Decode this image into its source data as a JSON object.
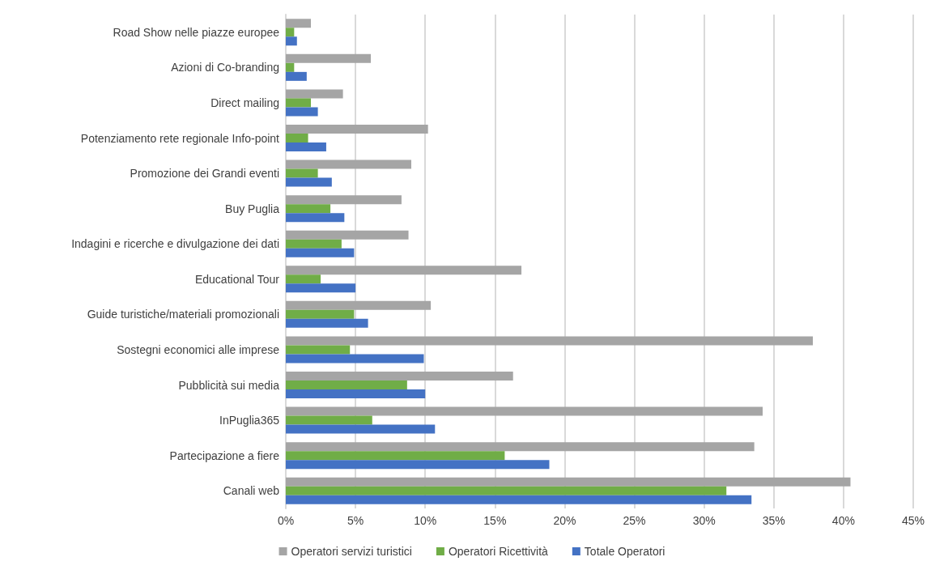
{
  "chart_data": {
    "type": "bar",
    "orientation": "horizontal",
    "categories": [
      "Road Show nelle piazze europee",
      "Azioni di Co-branding",
      "Direct mailing",
      "Potenziamento rete regionale Info-point",
      "Promozione dei Grandi eventi",
      "Buy Puglia",
      "Indagini e ricerche e divulgazione dei dati",
      "Educational Tour",
      "Guide turistiche/materiali promozionali",
      "Sostegni economici alle imprese",
      "Pubblicità sui media",
      "InPuglia365",
      "Partecipazione a fiere",
      "Canali web"
    ],
    "series": [
      {
        "name": "Operatori servizi turistici",
        "color": "#a5a5a5",
        "values": [
          1.8,
          6.1,
          4.1,
          10.2,
          9.0,
          8.3,
          8.8,
          16.9,
          10.4,
          37.8,
          16.3,
          34.2,
          33.6,
          40.5
        ]
      },
      {
        "name": "Operatori Ricettività",
        "color": "#70ad47",
        "values": [
          0.6,
          0.6,
          1.8,
          1.6,
          2.3,
          3.2,
          4.0,
          2.5,
          4.9,
          4.6,
          8.7,
          6.2,
          15.7,
          31.6
        ]
      },
      {
        "name": "Totale Operatori",
        "color": "#4472c4",
        "values": [
          0.8,
          1.5,
          2.3,
          2.9,
          3.3,
          4.2,
          4.9,
          5.0,
          5.9,
          9.9,
          10.0,
          10.7,
          18.9,
          33.4
        ]
      }
    ],
    "xlim": [
      0,
      45
    ],
    "xticks": [
      {
        "value": 0,
        "label": "0%"
      },
      {
        "value": 5,
        "label": "5%"
      },
      {
        "value": 10,
        "label": "10%"
      },
      {
        "value": 15,
        "label": "15%"
      },
      {
        "value": 20,
        "label": "20%"
      },
      {
        "value": 25,
        "label": "25%"
      },
      {
        "value": 30,
        "label": "30%"
      },
      {
        "value": 35,
        "label": "35%"
      },
      {
        "value": 40,
        "label": "40%"
      },
      {
        "value": 45,
        "label": "45%"
      }
    ],
    "grid": "x",
    "legend": "bottom"
  }
}
